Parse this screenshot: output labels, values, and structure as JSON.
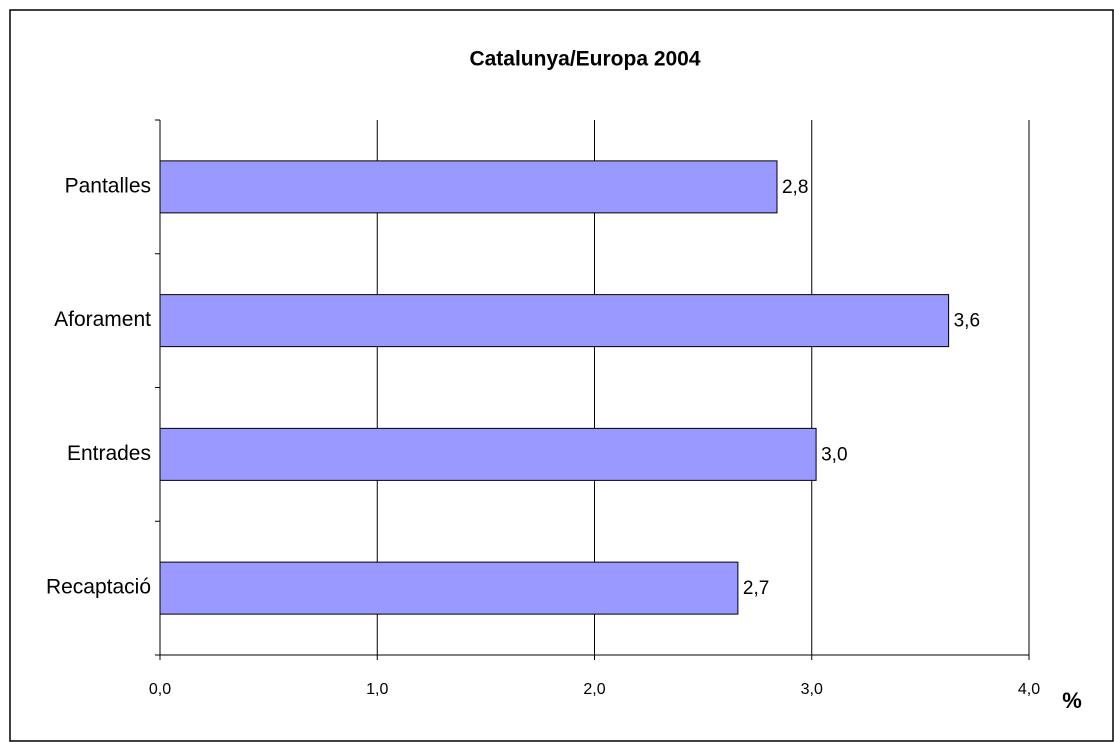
{
  "chart_data": {
    "type": "hbar",
    "title": "Catalunya/Europa 2004",
    "categories": [
      "Pantalles",
      "Aforament",
      "Entrades",
      "Recaptació"
    ],
    "values": [
      2.84,
      3.63,
      3.02,
      2.66
    ],
    "value_labels": [
      "2,8",
      "3,6",
      "3,0",
      "2,7"
    ],
    "color": "#9999ff",
    "x_label": "%",
    "xlim": [
      0,
      4
    ],
    "xticks": [
      {
        "value": 0,
        "label": "0,0"
      },
      {
        "value": 1,
        "label": "1,0"
      },
      {
        "value": 2,
        "label": "2,0"
      },
      {
        "value": 3,
        "label": "3,0"
      },
      {
        "value": 4,
        "label": "4,0"
      }
    ],
    "grid": true
  }
}
